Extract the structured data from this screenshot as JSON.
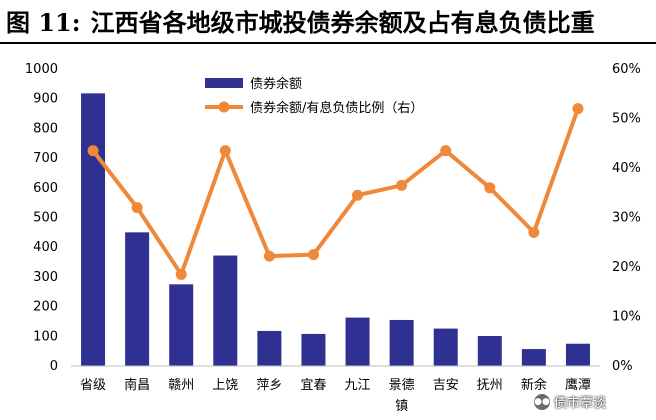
{
  "figure": {
    "label": "图 11:",
    "title": "江西省各地级市城投债券余额及占有息负债比重"
  },
  "watermark": {
    "icon": "wechat-icon",
    "text": "债市覃谈"
  },
  "colors": {
    "bar": "#2E3192",
    "line": "#F0883A"
  },
  "chart_data": {
    "type": "bar",
    "categories": [
      "省级",
      "南昌",
      "赣州",
      "上饶",
      "萍乡",
      "宜春",
      "九江",
      "景德镇",
      "吉安",
      "抚州",
      "新余",
      "鹰潭"
    ],
    "series": [
      {
        "name": "债券余额",
        "type": "bar",
        "axis": "left",
        "values": [
          918,
          450,
          275,
          372,
          118,
          108,
          163,
          155,
          126,
          101,
          57,
          75
        ]
      },
      {
        "name": "债券余额/有息负债比例（右）",
        "type": "line",
        "axis": "right",
        "values": [
          0.435,
          0.32,
          0.185,
          0.435,
          0.222,
          0.225,
          0.345,
          0.365,
          0.435,
          0.36,
          0.27,
          0.52
        ]
      }
    ],
    "y_left": {
      "range": [
        0,
        1000
      ],
      "ticks": [
        "0",
        "100",
        "200",
        "300",
        "400",
        "500",
        "600",
        "700",
        "800",
        "900",
        "1000"
      ]
    },
    "y_right": {
      "range": [
        0,
        0.6
      ],
      "ticks": [
        "0%",
        "10%",
        "20%",
        "30%",
        "40%",
        "50%",
        "60%"
      ]
    },
    "grid": false,
    "legend_position": "top-center"
  }
}
